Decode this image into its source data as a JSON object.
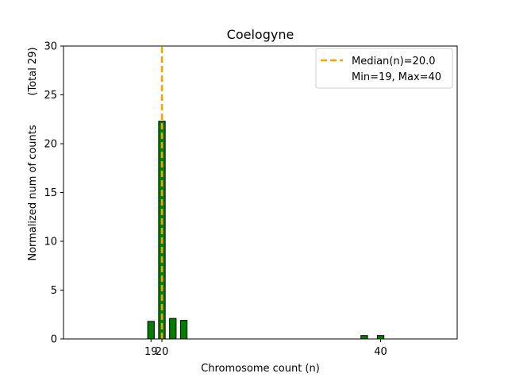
{
  "chart_data": {
    "type": "bar",
    "title": "Coelogyne",
    "xlabel": "Chromosome count (n)",
    "ylabel": "Normalized num of counts",
    "ylabel_note": "(Total 29)",
    "xlim": [
      11,
      47
    ],
    "ylim": [
      0,
      30
    ],
    "x_ticks": [
      19,
      20,
      40
    ],
    "y_ticks": [
      0,
      5,
      10,
      15,
      20,
      25,
      30
    ],
    "bars": [
      {
        "x": 19,
        "value": 1.8
      },
      {
        "x": 20,
        "value": 22.3
      },
      {
        "x": 21,
        "value": 2.1
      },
      {
        "x": 22,
        "value": 1.9
      },
      {
        "x": 38.5,
        "value": 0.35
      },
      {
        "x": 40,
        "value": 0.35
      }
    ],
    "median": 20.0,
    "legend": {
      "placement": "top-right",
      "median_label": "Median(n)=20.0",
      "range_label": "Min=19, Max=40"
    },
    "colors": {
      "bar_fill": "#007f00",
      "bar_edge": "#000000",
      "median_line": "#f0a500"
    },
    "grid": false
  }
}
